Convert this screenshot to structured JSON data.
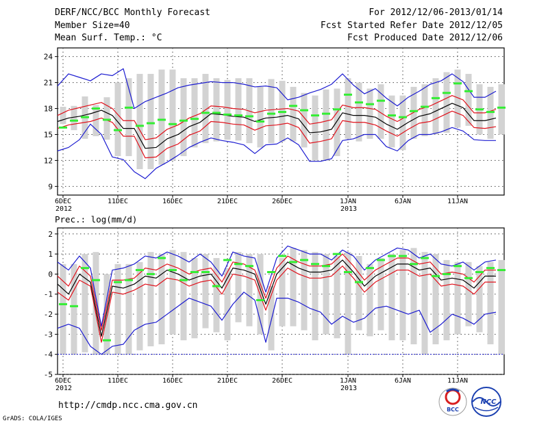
{
  "header": {
    "title": "DERF/NCC/BCC Monthly Forecast",
    "member_size": "Member Size=40",
    "variable": "Mean Surf. Temp.: °C",
    "period": "For 2012/12/06-2013/01/14",
    "start_date": "Fcst Started Refer Date 2012/12/05",
    "produced_date": "Fcst Produced Date 2012/12/06"
  },
  "footer": {
    "url": "http://cmdp.ncc.cma.gov.cn",
    "grads": "GrADS: COLA/IGES",
    "logo_bcc": "BCC",
    "logo_ncc": "NCC"
  },
  "colors": {
    "box": "#d3d3d3",
    "mean": "#000000",
    "spread": "#e0101a",
    "extreme": "#1a1ad0",
    "median": "#33ee33"
  },
  "chart_data": [
    {
      "type": "box-ensemble",
      "title": "Mean Surf. Temp.: °C",
      "ylim": [
        8,
        25
      ],
      "yticks": [
        9,
        12,
        15,
        18,
        21,
        24
      ],
      "days": 40,
      "xticks": [
        {
          "day": 0,
          "label": "6DEC",
          "sub": "2012"
        },
        {
          "day": 5,
          "label": "11DEC",
          "sub": ""
        },
        {
          "day": 10,
          "label": "16DEC",
          "sub": ""
        },
        {
          "day": 15,
          "label": "21DEC",
          "sub": ""
        },
        {
          "day": 20,
          "label": "26DEC",
          "sub": ""
        },
        {
          "day": 26,
          "label": "1JAN",
          "sub": "2013"
        },
        {
          "day": 31,
          "label": "6JAN",
          "sub": ""
        },
        {
          "day": 36,
          "label": "11JAN",
          "sub": ""
        }
      ],
      "mean": [
        16.5,
        16.9,
        17.1,
        17.4,
        17.8,
        17.2,
        15.7,
        15.7,
        13.4,
        13.5,
        14.5,
        15.0,
        15.9,
        16.4,
        17.4,
        17.3,
        17.1,
        17.0,
        16.5,
        16.9,
        17.0,
        17.2,
        16.8,
        15.2,
        15.3,
        15.6,
        17.5,
        17.2,
        17.2,
        17.0,
        16.2,
        15.6,
        16.4,
        17.1,
        17.4,
        18.0,
        18.6,
        18.1,
        16.6,
        16.6,
        16.9
      ],
      "upper": [
        17.2,
        17.8,
        18.1,
        18.4,
        18.7,
        18.0,
        16.6,
        16.6,
        14.4,
        14.6,
        15.6,
        16.1,
        16.9,
        17.4,
        18.3,
        18.2,
        18.0,
        17.9,
        17.5,
        17.8,
        17.9,
        18.0,
        17.7,
        16.2,
        16.4,
        16.7,
        18.4,
        18.1,
        18.1,
        17.9,
        17.1,
        16.5,
        17.2,
        17.9,
        18.3,
        18.9,
        19.5,
        19.0,
        17.5,
        17.5,
        17.9
      ],
      "lower": [
        15.7,
        16.1,
        16.3,
        16.5,
        16.9,
        16.4,
        14.8,
        14.8,
        12.3,
        12.4,
        13.4,
        13.9,
        14.9,
        15.4,
        16.5,
        16.4,
        16.2,
        16.1,
        15.5,
        16.0,
        16.1,
        16.3,
        15.8,
        14.0,
        14.2,
        14.5,
        16.6,
        16.4,
        16.4,
        16.1,
        15.4,
        14.8,
        15.6,
        16.3,
        16.5,
        17.1,
        17.7,
        17.2,
        15.8,
        15.7,
        15.9
      ],
      "max": [
        20.6,
        22.0,
        21.6,
        21.2,
        22.0,
        21.8,
        22.6,
        18.0,
        18.8,
        19.3,
        19.8,
        20.4,
        20.7,
        20.9,
        21.1,
        21.0,
        21.0,
        20.8,
        20.5,
        20.6,
        20.4,
        19.0,
        19.3,
        19.8,
        20.2,
        20.8,
        22.0,
        20.7,
        19.7,
        20.3,
        19.2,
        18.3,
        19.3,
        20.0,
        20.8,
        21.2,
        22.0,
        21.1,
        19.3,
        19.3,
        20.0
      ],
      "min": [
        13.1,
        13.5,
        14.4,
        16.2,
        15.0,
        12.4,
        12.1,
        10.7,
        9.9,
        11.1,
        11.8,
        12.6,
        13.5,
        14.1,
        14.6,
        14.3,
        14.1,
        13.8,
        12.8,
        13.8,
        13.9,
        14.6,
        13.8,
        11.9,
        11.9,
        12.2,
        14.3,
        14.5,
        15.0,
        15.0,
        13.6,
        13.1,
        14.3,
        15.0,
        15.0,
        15.3,
        15.8,
        15.4,
        14.4,
        14.3,
        14.3
      ],
      "box_high": [
        18.2,
        18.3,
        19.4,
        18.4,
        19.3,
        21.0,
        21.5,
        22.0,
        22.0,
        22.5,
        22.5,
        21.5,
        21.5,
        22.0,
        21.5,
        21.3,
        21.5,
        21.5,
        20.5,
        21.4,
        21.2,
        20.5,
        19.8,
        19.5,
        20.2,
        20.3,
        21.5,
        21.0,
        20.3,
        20.8,
        19.5,
        19.5,
        20.5,
        20.8,
        21.5,
        22.2,
        22.5,
        22.0,
        20.8,
        20.5,
        20.8
      ],
      "box_low": [
        16.2,
        15.5,
        14.5,
        14.8,
        14.4,
        12.5,
        12.5,
        11.0,
        11.0,
        11.5,
        12.0,
        12.5,
        13.5,
        14.0,
        14.2,
        14.4,
        14.3,
        14.0,
        13.5,
        14.0,
        14.2,
        14.2,
        13.5,
        12.0,
        12.0,
        12.5,
        14.5,
        14.2,
        14.5,
        14.5,
        13.5,
        13.2,
        14.5,
        14.8,
        15.0,
        15.2,
        15.8,
        16.0,
        15.0,
        14.5,
        15.0
      ],
      "median": [
        15.8,
        16.6,
        17.0,
        18.0,
        16.7,
        15.5,
        18.1,
        16.0,
        16.3,
        16.7,
        16.2,
        16.6,
        16.8,
        17.5,
        17.5,
        17.3,
        17.2,
        17.1,
        16.5,
        17.4,
        17.6,
        18.3,
        17.8,
        17.2,
        17.4,
        17.9,
        19.6,
        18.7,
        18.5,
        18.9,
        17.2,
        17.0,
        17.7,
        18.2,
        19.2,
        19.8,
        20.9,
        20.0,
        17.9,
        17.6,
        18.1
      ]
    },
    {
      "type": "box-ensemble",
      "title": "Prec.: log(mm/d)",
      "ylim": [
        -5,
        2.3
      ],
      "yticks": [
        -5,
        -4,
        -3,
        -2,
        -1,
        0,
        1,
        2
      ],
      "days": 40,
      "xticks": [
        {
          "day": 0,
          "label": "6DEC",
          "sub": "2012"
        },
        {
          "day": 5,
          "label": "11DEC",
          "sub": ""
        },
        {
          "day": 10,
          "label": "16DEC",
          "sub": ""
        },
        {
          "day": 15,
          "label": "21DEC",
          "sub": ""
        },
        {
          "day": 20,
          "label": "26DEC",
          "sub": ""
        },
        {
          "day": 26,
          "label": "1JAN",
          "sub": "2013"
        },
        {
          "day": 31,
          "label": "6JAN",
          "sub": ""
        },
        {
          "day": 36,
          "label": "11JAN",
          "sub": ""
        }
      ],
      "mean": [
        -0.5,
        -1.0,
        0.0,
        -0.4,
        -3.1,
        -0.6,
        -0.7,
        -0.5,
        -0.1,
        -0.2,
        0.2,
        0.0,
        -0.3,
        -0.1,
        0.0,
        -0.7,
        0.3,
        0.2,
        0.0,
        -1.5,
        0.0,
        0.6,
        0.3,
        0.1,
        0.1,
        0.2,
        0.7,
        0.1,
        -0.6,
        -0.1,
        0.2,
        0.5,
        0.5,
        0.2,
        0.3,
        -0.3,
        -0.2,
        -0.3,
        -0.7,
        -0.1,
        -0.1
      ],
      "upper": [
        -0.1,
        -0.6,
        0.4,
        -0.1,
        -2.8,
        -0.3,
        -0.3,
        -0.2,
        0.3,
        0.2,
        0.5,
        0.3,
        0.0,
        0.2,
        0.3,
        -0.4,
        0.6,
        0.5,
        0.2,
        -1.2,
        0.3,
        0.9,
        0.6,
        0.4,
        0.4,
        0.5,
        1.0,
        0.4,
        -0.3,
        0.2,
        0.5,
        0.8,
        0.8,
        0.5,
        0.6,
        0.0,
        0.1,
        0.0,
        -0.4,
        0.2,
        0.2
      ],
      "lower": [
        -0.9,
        -1.3,
        -0.3,
        -0.6,
        -3.4,
        -0.9,
        -1.0,
        -0.8,
        -0.5,
        -0.6,
        -0.2,
        -0.3,
        -0.6,
        -0.4,
        -0.3,
        -1.0,
        0.0,
        -0.1,
        -0.3,
        -1.8,
        -0.3,
        0.3,
        0.0,
        -0.2,
        -0.2,
        -0.1,
        0.4,
        -0.2,
        -0.9,
        -0.4,
        -0.1,
        0.2,
        0.2,
        -0.1,
        0.0,
        -0.6,
        -0.5,
        -0.6,
        -1.0,
        -0.4,
        -0.4
      ],
      "max": [
        0.6,
        0.2,
        0.9,
        0.3,
        -2.6,
        0.2,
        0.3,
        0.5,
        0.9,
        0.8,
        1.1,
        0.9,
        0.6,
        1.0,
        0.6,
        -0.1,
        1.1,
        0.9,
        0.8,
        -0.9,
        0.8,
        1.4,
        1.2,
        1.0,
        1.0,
        0.7,
        1.2,
        0.9,
        0.2,
        0.7,
        1.0,
        1.3,
        1.2,
        0.8,
        1.0,
        0.5,
        0.4,
        0.6,
        0.2,
        0.6,
        0.7
      ],
      "min": [
        -2.7,
        -2.5,
        -2.7,
        -3.6,
        -4.0,
        -3.6,
        -3.5,
        -2.8,
        -2.5,
        -2.4,
        -2.0,
        -1.6,
        -1.2,
        -1.4,
        -1.6,
        -2.3,
        -1.5,
        -0.9,
        -1.3,
        -3.4,
        -1.2,
        -1.2,
        -1.4,
        -1.7,
        -1.9,
        -2.5,
        -2.1,
        -2.4,
        -2.2,
        -1.7,
        -1.6,
        -1.8,
        -2.0,
        -1.8,
        -2.9,
        -2.5,
        -2.0,
        -2.2,
        -2.5,
        -2.0,
        -1.9
      ],
      "box_high": [
        0.5,
        0.5,
        1.0,
        1.1,
        0.0,
        0.5,
        0.5,
        0.6,
        1.1,
        1.0,
        1.2,
        1.1,
        0.8,
        1.0,
        0.8,
        0.3,
        1.1,
        1.0,
        1.0,
        -0.6,
        0.8,
        1.3,
        1.2,
        1.1,
        1.0,
        0.9,
        1.1,
        0.9,
        0.5,
        0.8,
        1.0,
        1.2,
        1.3,
        1.1,
        1.0,
        0.7,
        0.6,
        0.6,
        0.4,
        0.6,
        0.7
      ],
      "box_low": [
        -4.0,
        -4.0,
        -3.9,
        -4.0,
        -4.0,
        -4.0,
        -4.0,
        -3.8,
        -3.6,
        -3.5,
        -3.0,
        -3.3,
        -3.2,
        -2.7,
        -2.9,
        -3.3,
        -2.4,
        -2.6,
        -3.0,
        -3.8,
        -2.6,
        -2.6,
        -2.8,
        -3.3,
        -3.0,
        -3.2,
        -4.0,
        -2.8,
        -3.1,
        -2.8,
        -3.3,
        -3.3,
        -3.5,
        -4.0,
        -3.5,
        -3.3,
        -3.0,
        -2.6,
        -2.9,
        -3.5,
        -4.0
      ],
      "median": [
        -1.5,
        -1.6,
        0.3,
        -0.3,
        -3.3,
        -0.4,
        -0.3,
        0.2,
        0.0,
        0.8,
        0.2,
        -0.3,
        0.1,
        0.1,
        -0.6,
        0.7,
        0.5,
        0.4,
        -1.3,
        0.1,
        0.9,
        0.6,
        0.7,
        0.5,
        0.4,
        1.0,
        0.1,
        -0.4,
        0.3,
        0.7,
        0.9,
        0.9,
        0.5,
        0.8,
        -0.1,
        0.0,
        0.4,
        -0.2,
        0.1,
        0.3,
        0.2
      ]
    }
  ]
}
